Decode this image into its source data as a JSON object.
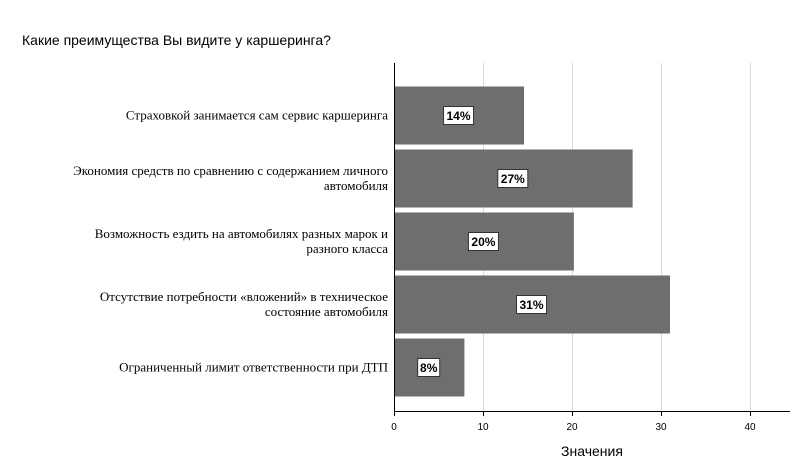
{
  "chart_data": {
    "type": "bar",
    "orientation": "horizontal",
    "title": "Какие преимущества Вы видите у каршеринга?",
    "xlabel": "Значения",
    "ylabel": "",
    "xlim": [
      0,
      44
    ],
    "x_ticks": [
      0,
      10,
      20,
      30,
      40
    ],
    "grid": "vertical",
    "bar_color": "#6e6e6e",
    "categories": [
      [
        "Страховкой занимается сам сервис каршеринга"
      ],
      [
        "Экономия средств по сравнению с содержанием личного",
        "автомобиля"
      ],
      [
        "Возможность ездить на автомобилях разных марок и",
        "разного класса"
      ],
      [
        "Отсутствие потребности «вложений» в техническое",
        "состояние автомобиля"
      ],
      [
        "Ограниченный лимит ответственности при ДТП"
      ]
    ],
    "values": [
      14.5,
      26.7,
      20.1,
      30.9,
      7.8
    ],
    "data_labels": [
      "14%",
      "27%",
      "20%",
      "31%",
      "8%"
    ]
  }
}
